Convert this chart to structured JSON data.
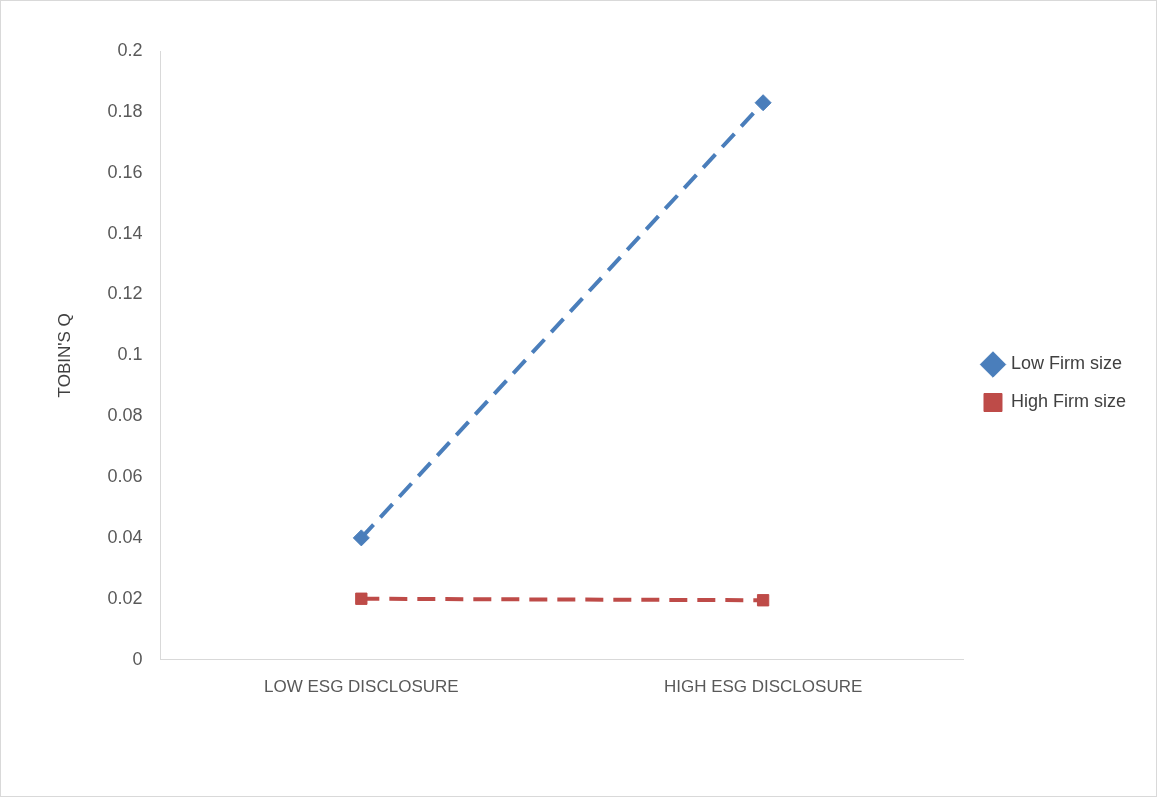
{
  "chart_data": {
    "type": "line",
    "ylabel": "TOBIN'S Q",
    "categories": [
      "LOW ESG DISCLOSURE",
      "HIGH ESG DISCLOSURE"
    ],
    "series": [
      {
        "name": "Low Firm size",
        "color": "#4a7ebb",
        "values": [
          0.04,
          0.183
        ],
        "marker": "diamond",
        "line_style": "dashed"
      },
      {
        "name": "High Firm size",
        "color": "#be4b48",
        "values": [
          0.02,
          0.0195
        ],
        "marker": "square",
        "line_style": "dashed"
      }
    ],
    "ylim": [
      0,
      0.2
    ],
    "yticks": [
      0,
      0.02,
      0.04,
      0.06,
      0.08,
      0.1,
      0.12,
      0.14,
      0.16,
      0.18,
      0.2
    ],
    "grid": false,
    "legend": "right"
  }
}
